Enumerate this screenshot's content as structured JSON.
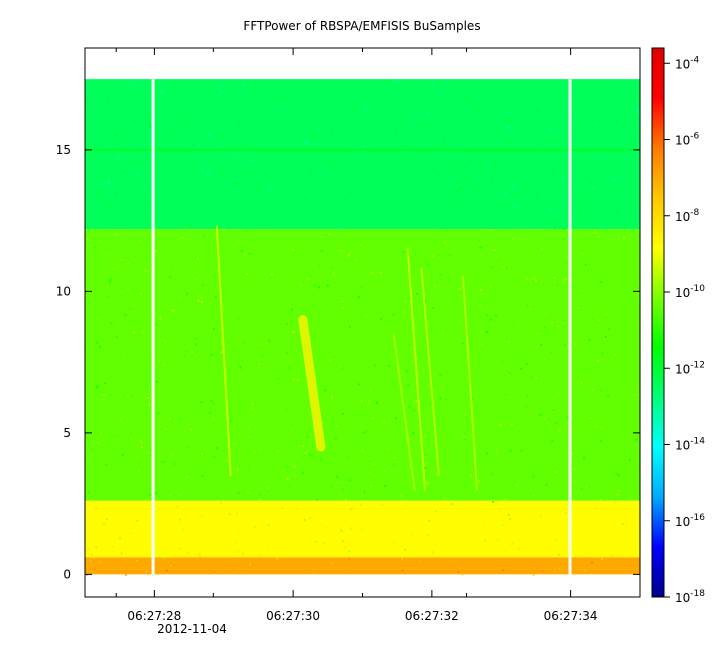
{
  "chart_data": {
    "type": "heatmap",
    "title": "FFTPower of RBSPA/EMFISIS  BuSamples",
    "xlabel": "",
    "ylabel": "",
    "x_ticks": [
      {
        "value": 27.5,
        "label": "06:27:28"
      },
      {
        "value": 29.5,
        "label": "06:27:30"
      },
      {
        "value": 31.5,
        "label": "06:27:32"
      },
      {
        "value": 33.5,
        "label": "06:27:34"
      }
    ],
    "x_minor_ticks": [
      26.95,
      28.35,
      30.5,
      32.0
    ],
    "x_date_label": "2012-11-04",
    "xlim": [
      26.5,
      34.5
    ],
    "y_ticks": [
      0,
      5,
      10,
      15
    ],
    "ylim": [
      -0.8,
      18.6
    ],
    "z_scale": "log",
    "zlim_exponent": [
      -18,
      -3.6
    ],
    "colorbar_ticks": [
      {
        "exp": -4,
        "base": "10",
        "sup": "-4"
      },
      {
        "exp": -6,
        "base": "10",
        "sup": "-6"
      },
      {
        "exp": -8,
        "base": "10",
        "sup": "-8"
      },
      {
        "exp": -10,
        "base": "10",
        "sup": "-10"
      },
      {
        "exp": -12,
        "base": "10",
        "sup": "-12"
      },
      {
        "exp": -14,
        "base": "10",
        "sup": "-14"
      },
      {
        "exp": -16,
        "base": "10",
        "sup": "-16"
      },
      {
        "exp": -18,
        "base": "10",
        "sup": "-18"
      }
    ],
    "colormap": [
      "#00008b",
      "#0000ff",
      "#00aaff",
      "#00ffff",
      "#00ff7a",
      "#00ff00",
      "#7aff00",
      "#ffff00",
      "#ffc800",
      "#ff7a00",
      "#ff0000",
      "#e00000"
    ],
    "data_gaps": [
      {
        "x_start": 27.46,
        "x_end": 27.5
      },
      {
        "x_start": 33.47,
        "x_end": 33.51
      }
    ],
    "bands": [
      {
        "f_min": 12.2,
        "f_max": 17.5,
        "exp": -12.4
      },
      {
        "f_min": 2.6,
        "f_max": 12.2,
        "exp": -10.4
      },
      {
        "f_min": 0.6,
        "f_max": 2.6,
        "exp": -8.8
      },
      {
        "f_min": 0.0,
        "f_max": 0.6,
        "exp": -7.0
      }
    ],
    "line_features": [
      {
        "f": 15.0,
        "exp": -11.8
      }
    ],
    "chorus_elements": [
      {
        "t_top": 29.64,
        "f_top": 9.0,
        "t_bot": 29.9,
        "f_bot": 4.5,
        "exp": -8.6
      },
      {
        "t_top": 28.4,
        "f_top": 12.3,
        "t_bot": 28.6,
        "f_bot": 3.5,
        "exp": -9.2
      },
      {
        "t_top": 31.15,
        "f_top": 11.5,
        "t_bot": 31.4,
        "f_bot": 3.0,
        "exp": -9.3
      },
      {
        "t_top": 31.35,
        "f_top": 10.8,
        "t_bot": 31.6,
        "f_bot": 3.5,
        "exp": -9.4
      },
      {
        "t_top": 31.95,
        "f_top": 10.5,
        "t_bot": 32.15,
        "f_bot": 3.0,
        "exp": -9.5
      },
      {
        "t_top": 30.95,
        "f_top": 8.5,
        "t_bot": 31.25,
        "f_bot": 3.0,
        "exp": -9.6
      }
    ]
  }
}
